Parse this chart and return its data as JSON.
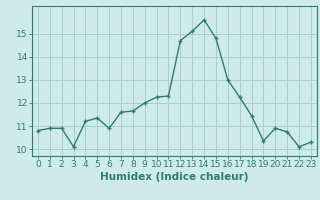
{
  "x": [
    0,
    1,
    2,
    3,
    4,
    5,
    6,
    7,
    8,
    9,
    10,
    11,
    12,
    13,
    14,
    15,
    16,
    17,
    18,
    19,
    20,
    21,
    22,
    23
  ],
  "y": [
    10.8,
    10.9,
    10.9,
    10.1,
    11.2,
    11.35,
    10.9,
    11.6,
    11.65,
    12.0,
    12.25,
    12.3,
    14.7,
    15.1,
    15.6,
    14.8,
    13.0,
    12.25,
    11.45,
    10.35,
    10.9,
    10.75,
    10.1,
    10.3
  ],
  "xlabel": "Humidex (Indice chaleur)",
  "xlim": [
    -0.5,
    23.5
  ],
  "ylim": [
    9.7,
    16.2
  ],
  "yticks": [
    10,
    11,
    12,
    13,
    14,
    15
  ],
  "ytick_labels": [
    "10",
    "11",
    "12",
    "13",
    "14",
    "15"
  ],
  "xticks": [
    0,
    1,
    2,
    3,
    4,
    5,
    6,
    7,
    8,
    9,
    10,
    11,
    12,
    13,
    14,
    15,
    16,
    17,
    18,
    19,
    20,
    21,
    22,
    23
  ],
  "xtick_labels": [
    "0",
    "1",
    "2",
    "3",
    "4",
    "5",
    "6",
    "7",
    "8",
    "9",
    "10",
    "11",
    "12",
    "13",
    "14",
    "15",
    "16",
    "17",
    "18",
    "19",
    "20",
    "21",
    "22",
    "23"
  ],
  "line_color": "#2e7d6e",
  "marker": "+",
  "marker_size": 3.5,
  "bg_color": "#ceeaea",
  "grid_color": "#a8cece",
  "tick_label_fontsize": 6.5,
  "xlabel_fontsize": 7.5,
  "line_width": 1.0
}
